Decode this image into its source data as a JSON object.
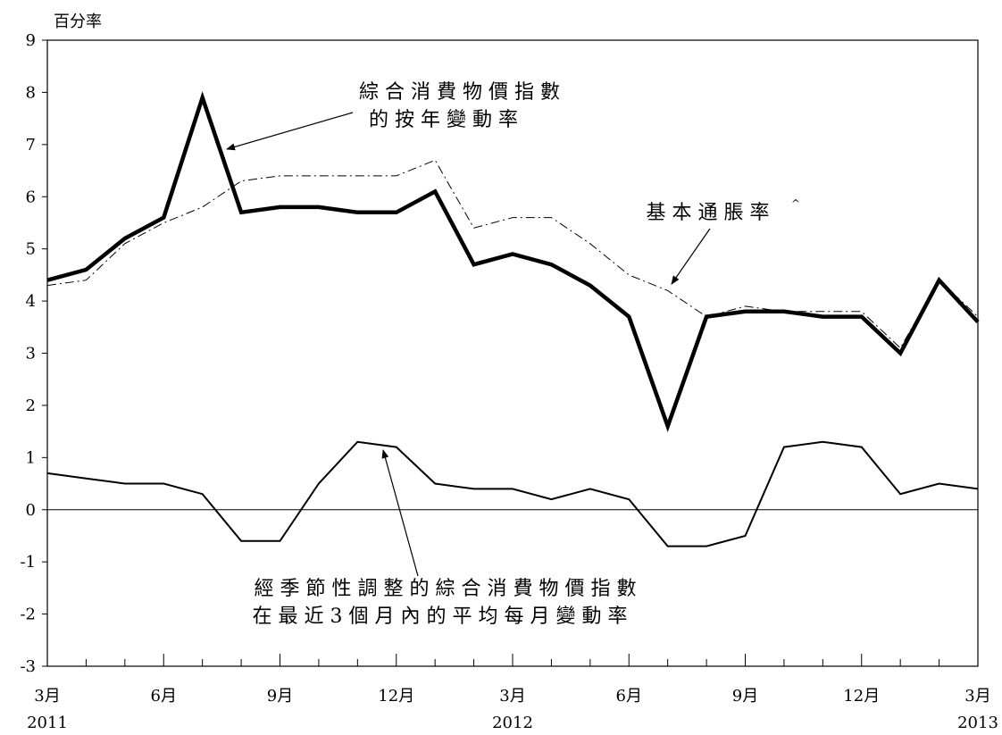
{
  "chart_data": {
    "type": "line",
    "ylabel": "百分率",
    "ylim": [
      -3,
      9
    ],
    "yticks": [
      "9",
      "8",
      "7",
      "6",
      "5",
      "4",
      "3",
      "2",
      "1",
      "0",
      "-1",
      "-2",
      "-3"
    ],
    "x_month_index": [
      0,
      1,
      2,
      3,
      4,
      5,
      6,
      7,
      8,
      9,
      10,
      11,
      12,
      13,
      14,
      15,
      16,
      17,
      18,
      19,
      20,
      21,
      22,
      23,
      24
    ],
    "x_tick_labels": [
      {
        "i": 0,
        "month": "3月",
        "year": "2011"
      },
      {
        "i": 3,
        "month": "6月",
        "year": ""
      },
      {
        "i": 6,
        "month": "9月",
        "year": ""
      },
      {
        "i": 9,
        "month": "12月",
        "year": ""
      },
      {
        "i": 12,
        "month": "3月",
        "year": "2012"
      },
      {
        "i": 15,
        "month": "6月",
        "year": ""
      },
      {
        "i": 18,
        "month": "9月",
        "year": ""
      },
      {
        "i": 21,
        "month": "12月",
        "year": ""
      },
      {
        "i": 24,
        "month": "3月",
        "year": "2013"
      }
    ],
    "series": [
      {
        "name": "綜合消費物價指數的按年變動率",
        "style": "thick-solid",
        "values": [
          4.4,
          4.6,
          5.2,
          5.6,
          7.9,
          5.7,
          5.8,
          5.8,
          5.7,
          5.7,
          6.1,
          4.7,
          4.9,
          4.7,
          4.3,
          3.7,
          1.6,
          3.7,
          3.8,
          3.8,
          3.7,
          3.7,
          3.0,
          4.4,
          3.6
        ]
      },
      {
        "name": "基本通脹率^",
        "style": "dash-dot",
        "values": [
          4.3,
          4.4,
          5.1,
          5.5,
          5.8,
          6.3,
          6.4,
          6.4,
          6.4,
          6.4,
          6.7,
          5.4,
          5.6,
          5.6,
          5.1,
          4.5,
          4.2,
          3.7,
          3.9,
          3.8,
          3.8,
          3.8,
          3.1,
          4.4,
          3.7
        ]
      },
      {
        "name": "經季節性調整的綜合消費物價指數在最近3個月內的平均每月變動率",
        "style": "thin-solid",
        "values": [
          0.7,
          0.6,
          0.5,
          0.5,
          0.3,
          -0.6,
          -0.6,
          0.5,
          1.3,
          1.2,
          0.5,
          0.4,
          0.4,
          0.2,
          0.4,
          0.2,
          -0.7,
          -0.7,
          -0.5,
          1.2,
          1.3,
          1.2,
          0.3,
          0.5,
          0.4
        ]
      }
    ],
    "annotations": {
      "cpi_line1": "綜合消費物價指數",
      "cpi_line2": "的按年變動率",
      "underlying": "基本通脹率",
      "underlying_mark": "^",
      "mom_line1": "經季節性調整的綜合消費物價指數",
      "mom_line2": "在最近3個月內的平均每月變動率"
    },
    "grid": false,
    "zero_line": true
  }
}
